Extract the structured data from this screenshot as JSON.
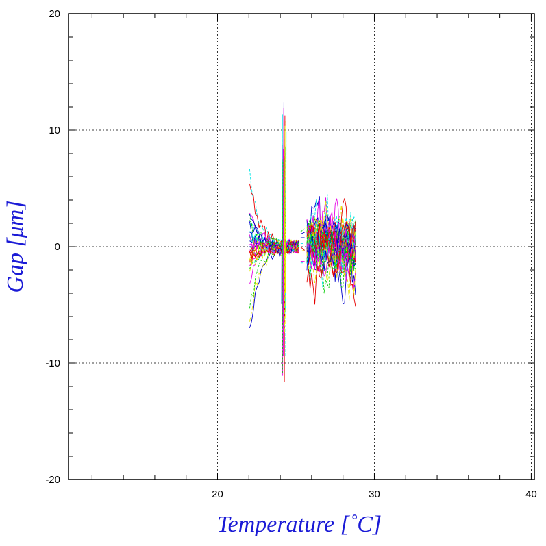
{
  "chart_data": {
    "type": "line",
    "title": "",
    "xlabel": "Temperature [˚C]",
    "ylabel": "Gap [μm]",
    "xlim": [
      10.5,
      40.2
    ],
    "ylim": [
      -20,
      20
    ],
    "x_ticks": [
      20,
      30,
      40
    ],
    "y_ticks": [
      -20,
      -10,
      0,
      10,
      20
    ],
    "grid": true,
    "legend": "none",
    "colors": [
      "#0000cc",
      "#00e6e6",
      "#e600e6",
      "#e6e600",
      "#e60000",
      "#00cc00"
    ],
    "clusters": [
      {
        "x_range": [
          22.0,
          23.6
        ],
        "y_range": [
          -8.5,
          8.2
        ],
        "note_series": "spiky transient lines"
      },
      {
        "x_range": [
          24.0,
          24.4
        ],
        "y_range": [
          -12.0,
          12.7
        ],
        "note_series": "vertical band"
      },
      {
        "x_range": [
          25.3,
          25.6
        ],
        "y_range": [
          -1.5,
          1.5
        ],
        "note_series": "short segments"
      },
      {
        "x_range": [
          25.6,
          28.9
        ],
        "y_range": [
          -5.0,
          5.3
        ],
        "note_series": "dense noisy lines"
      }
    ]
  }
}
